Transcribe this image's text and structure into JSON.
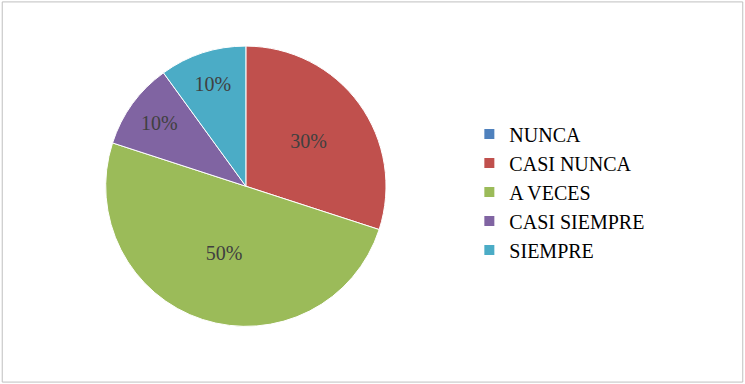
{
  "chart_data": {
    "type": "pie",
    "categories": [
      "NUNCA",
      "CASI NUNCA",
      "A VECES",
      "CASI SIEMPRE",
      "SIEMPRE"
    ],
    "values": [
      0,
      30,
      50,
      10,
      10
    ],
    "value_labels": [
      null,
      "30%",
      "50%",
      "10%",
      "10%"
    ],
    "colors": [
      "#4f81bd",
      "#c0504d",
      "#9bbb59",
      "#8064a2",
      "#4bacc6"
    ],
    "data_labels": true,
    "legend": "right"
  }
}
